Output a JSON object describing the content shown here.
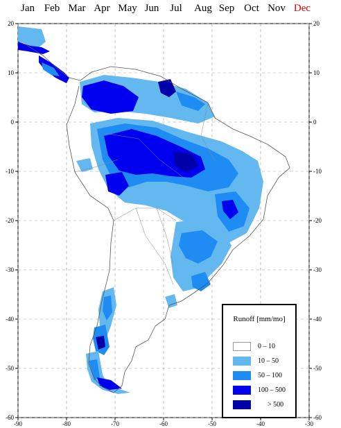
{
  "months": [
    {
      "label": "Jan",
      "color": "#000000"
    },
    {
      "label": "Feb",
      "color": "#000000"
    },
    {
      "label": "Mar",
      "color": "#000000"
    },
    {
      "label": "Apr",
      "color": "#000000"
    },
    {
      "label": "May",
      "color": "#000000"
    },
    {
      "label": "Jun",
      "color": "#000000"
    },
    {
      "label": "Jul",
      "color": "#000000"
    },
    {
      "label": "Aug",
      "color": "#000000"
    },
    {
      "label": "Sep",
      "color": "#000000"
    },
    {
      "label": "Oct",
      "color": "#000000"
    },
    {
      "label": "Nov",
      "color": "#000000"
    },
    {
      "label": "Dec",
      "color": "#e00000"
    }
  ],
  "map": {
    "lon_ticks": [
      "-90",
      "-80",
      "-70",
      "-60",
      "-50",
      "-40",
      "-30"
    ],
    "lat_ticks": [
      "20",
      "10",
      "0",
      "-10",
      "-20",
      "-30",
      "-40",
      "-50",
      "-60"
    ],
    "lon_range": [
      -90,
      -30
    ],
    "lat_range": [
      -60,
      20
    ],
    "grid": true
  },
  "legend": {
    "title": "Runoff [mm/mo]",
    "items": [
      {
        "label": "0  –  10",
        "color": "#ffffff"
      },
      {
        "label": "10  –  50",
        "color": "#63b8f0"
      },
      {
        "label": "50  –  100",
        "color": "#1e8cf2"
      },
      {
        "label": "100  –  500",
        "color": "#0000ee"
      },
      {
        "label": "> 500",
        "color": "#0000a8"
      }
    ]
  }
}
